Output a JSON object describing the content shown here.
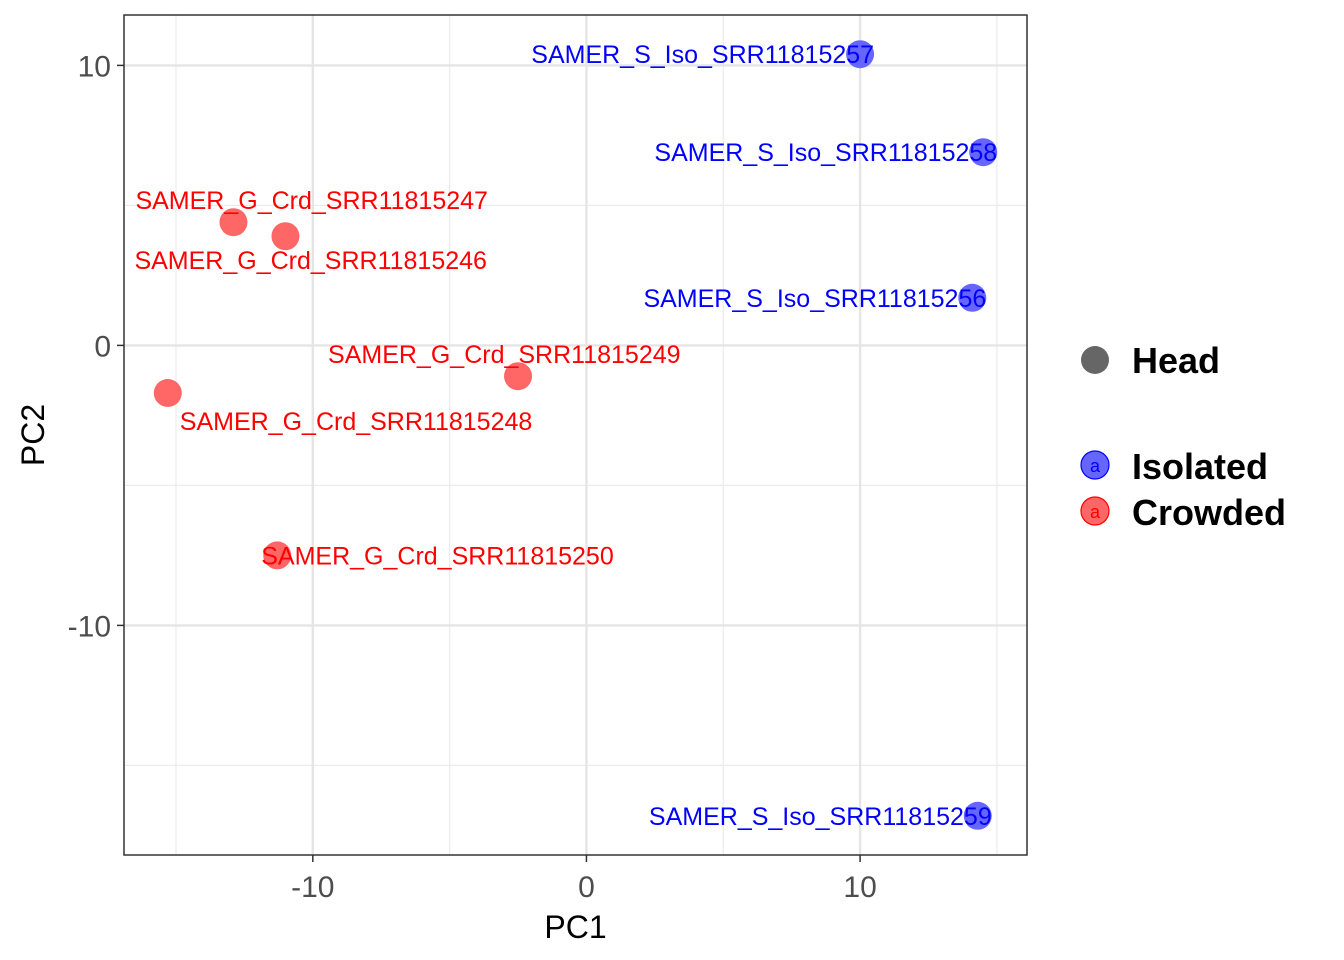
{
  "chart_data": {
    "type": "scatter",
    "xlabel": "PC1",
    "ylabel": "PC2",
    "xlim": [
      -16.9,
      16.1
    ],
    "ylim": [
      -18.2,
      11.8
    ],
    "x_ticks": [
      -10,
      0,
      10
    ],
    "y_ticks": [
      10,
      0,
      -10
    ],
    "x_tick_labels": [
      "-10",
      "0",
      "10"
    ],
    "y_tick_labels": [
      "10",
      "0",
      "-10"
    ],
    "grid": true,
    "legend_position": "right",
    "colors": {
      "Isolated": "#6666ff",
      "Crowded": "#ff6666",
      "Isolated_text": "#0000ff",
      "Crowded_text": "#ff0000",
      "shape_key": "#666666"
    },
    "series": [
      {
        "name": "Isolated",
        "points": [
          {
            "label": "SAMER_S_Iso_SRR11815257",
            "x": 10.0,
            "y": 10.4
          },
          {
            "label": "SAMER_S_Iso_SRR11815258",
            "x": 14.5,
            "y": 6.9
          },
          {
            "label": "SAMER_S_Iso_SRR11815256",
            "x": 14.1,
            "y": 1.7
          },
          {
            "label": "SAMER_S_Iso_SRR11815259",
            "x": 14.3,
            "y": -16.8
          }
        ]
      },
      {
        "name": "Crowded",
        "points": [
          {
            "label": "SAMER_G_Crd_SRR11815247",
            "x": -12.9,
            "y": 4.4
          },
          {
            "label": "SAMER_G_Crd_SRR11815246",
            "x": -11.0,
            "y": 3.9
          },
          {
            "label": "SAMER_G_Crd_SRR11815249",
            "x": -2.5,
            "y": -1.1
          },
          {
            "label": "SAMER_G_Crd_SRR11815248",
            "x": -15.3,
            "y": -1.7
          },
          {
            "label": "SAMER_G_Crd_SRR11815250",
            "x": -11.3,
            "y": -7.5
          }
        ]
      }
    ],
    "legend": {
      "shape_entries": [
        "Head"
      ],
      "color_entries": [
        "Isolated",
        "Crowded"
      ],
      "key_glyph": "a"
    }
  }
}
